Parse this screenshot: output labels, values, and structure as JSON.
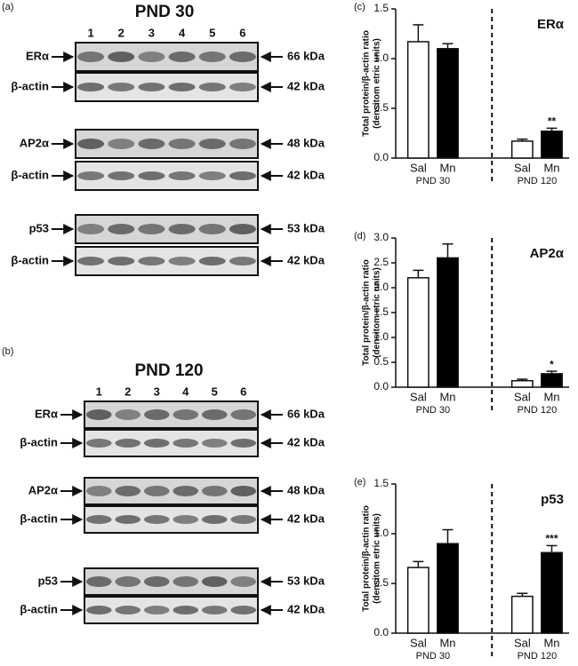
{
  "blots": [
    {
      "panel": "(a)",
      "title": "PND 30",
      "lanes": [
        "1",
        "2",
        "3",
        "4",
        "5",
        "6"
      ],
      "groups": [
        {
          "rows": [
            {
              "label": "ERα",
              "size": "66 kDa"
            },
            {
              "label": "β-actin",
              "size": "42 kDa"
            }
          ]
        },
        {
          "rows": [
            {
              "label": "AP2α",
              "size": "48 kDa"
            },
            {
              "label": "β-actin",
              "size": "42 kDa"
            }
          ]
        },
        {
          "rows": [
            {
              "label": "p53",
              "size": "53 kDa"
            },
            {
              "label": "β-actin",
              "size": "42 kDa"
            }
          ]
        }
      ]
    },
    {
      "panel": "(b)",
      "title": "PND 120",
      "lanes": [
        "1",
        "2",
        "3",
        "4",
        "5",
        "6"
      ],
      "groups": [
        {
          "rows": [
            {
              "label": "ERα",
              "size": "66 kDa"
            },
            {
              "label": "β-actin",
              "size": "42 kDa"
            }
          ]
        },
        {
          "rows": [
            {
              "label": "AP2α",
              "size": "48 kDa"
            },
            {
              "label": "β-actin",
              "size": "42 kDa"
            }
          ]
        },
        {
          "rows": [
            {
              "label": "p53",
              "size": "53 kDa"
            },
            {
              "label": "β-actin",
              "size": "42 kDa"
            }
          ]
        }
      ]
    }
  ],
  "chart_data": [
    {
      "type": "bar",
      "panel": "(c)",
      "title": "ERα",
      "ylabel": [
        "Total protein/β-actin ratio",
        "(densitom etric units)"
      ],
      "categories": [
        "Sal",
        "Mn",
        "Sal",
        "Mn"
      ],
      "groups": [
        "PND 30",
        "PND 120"
      ],
      "values": [
        1.17,
        1.1,
        0.17,
        0.27
      ],
      "errors": [
        0.17,
        0.05,
        0.02,
        0.03
      ],
      "significance": [
        null,
        null,
        null,
        "**"
      ],
      "colors": [
        "#ffffff",
        "#000000",
        "#ffffff",
        "#000000"
      ],
      "ylim": [
        0,
        1.5
      ],
      "yticks": [
        {
          "value": 0,
          "label": "0.0"
        },
        {
          "value": 0.5,
          "label": "0.5"
        },
        {
          "value": 1,
          "label": "1.0"
        },
        {
          "value": 1.5,
          "label": "1.5"
        }
      ]
    },
    {
      "type": "bar",
      "panel": "(d)",
      "title": "AP2α",
      "ylabel": [
        "Total protein/β-actin ratio",
        "(densitom etric units)"
      ],
      "categories": [
        "Sal",
        "Mn",
        "Sal",
        "Mn"
      ],
      "groups": [
        "PND 30",
        "PND 120"
      ],
      "values": [
        2.2,
        2.6,
        0.13,
        0.27
      ],
      "errors": [
        0.15,
        0.28,
        0.03,
        0.05
      ],
      "significance": [
        null,
        null,
        null,
        "*"
      ],
      "colors": [
        "#ffffff",
        "#000000",
        "#ffffff",
        "#000000"
      ],
      "ylim": [
        0,
        3
      ],
      "yticks": [
        {
          "value": 0,
          "label": "0.0"
        },
        {
          "value": 0.5,
          "label": "0.5"
        },
        {
          "value": 1,
          "label": "1.0"
        },
        {
          "value": 1.5,
          "label": "1.5"
        },
        {
          "value": 2,
          "label": "2.0"
        },
        {
          "value": 2.5,
          "label": "2.5"
        },
        {
          "value": 3,
          "label": "3.0"
        }
      ]
    },
    {
      "type": "bar",
      "panel": "(e)",
      "title": "p53",
      "ylabel": [
        "Total protein/β-actin ratio",
        "(densitom etric units)"
      ],
      "categories": [
        "Sal",
        "Mn",
        "Sal",
        "Mn"
      ],
      "groups": [
        "PND 30",
        "PND 120"
      ],
      "values": [
        0.66,
        0.9,
        0.37,
        0.81
      ],
      "errors": [
        0.06,
        0.14,
        0.03,
        0.07
      ],
      "significance": [
        null,
        null,
        null,
        "***"
      ],
      "colors": [
        "#ffffff",
        "#000000",
        "#ffffff",
        "#000000"
      ],
      "ylim": [
        0,
        1.5
      ],
      "yticks": [
        {
          "value": 0,
          "label": "0.0"
        },
        {
          "value": 0.5,
          "label": "0.5"
        },
        {
          "value": 1,
          "label": "1.0"
        },
        {
          "value": 1.5,
          "label": "1.5"
        }
      ]
    }
  ]
}
